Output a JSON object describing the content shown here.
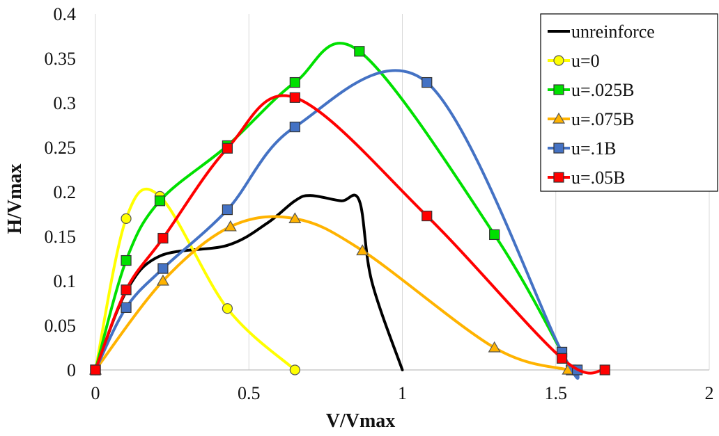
{
  "chart_data": {
    "type": "scatter",
    "title": "",
    "xlabel": "V/Vmax",
    "ylabel": "H/Vmax",
    "xlim": [
      0,
      2
    ],
    "ylim": [
      0,
      0.4
    ],
    "x_ticks": [
      0,
      0.5,
      1,
      1.5,
      2
    ],
    "x_tick_labels": [
      "0",
      "0.5",
      "1",
      "1.5",
      "2"
    ],
    "y_ticks": [
      0,
      0.05,
      0.1,
      0.15,
      0.2,
      0.25,
      0.3,
      0.35,
      0.4
    ],
    "y_tick_labels": [
      "0",
      "0.05",
      "0.1",
      "0.15",
      "0.2",
      "0.25",
      "0.3",
      "0.35",
      "0.4"
    ],
    "grid": "vertical",
    "legend_position": "top-right",
    "series": [
      {
        "name": "unreinforce",
        "color": "#000000",
        "marker": "none",
        "x": [
          0,
          0.1,
          0.21,
          0.43,
          0.56,
          0.65,
          0.7,
          0.8,
          0.86,
          0.9,
          1.0
        ],
        "y": [
          0,
          0.088,
          0.128,
          0.14,
          0.165,
          0.19,
          0.196,
          0.19,
          0.19,
          0.1,
          0
        ]
      },
      {
        "name": "u=0",
        "color": "#ffff00",
        "marker": "circle",
        "x": [
          0,
          0.1,
          0.21,
          0.43,
          0.65
        ],
        "y": [
          0,
          0.17,
          0.195,
          0.069,
          0
        ]
      },
      {
        "name": "u=.025B",
        "color": "#00e000",
        "marker": "square",
        "x": [
          0,
          0.1,
          0.21,
          0.43,
          0.65,
          0.86,
          1.3,
          1.55
        ],
        "y": [
          0,
          0.123,
          0.19,
          0.252,
          0.323,
          0.358,
          0.152,
          0
        ]
      },
      {
        "name": "u=.075B",
        "color": "#ffb300",
        "marker": "triangle",
        "x": [
          0,
          0.22,
          0.44,
          0.65,
          0.87,
          1.3,
          1.54
        ],
        "y": [
          0,
          0.1,
          0.161,
          0.17,
          0.134,
          0.025,
          0
        ]
      },
      {
        "name": "u=.1B",
        "color": "#4472c4",
        "marker": "square",
        "x": [
          0,
          0.1,
          0.22,
          0.43,
          0.65,
          1.08,
          1.52,
          1.57
        ],
        "y": [
          0,
          0.07,
          0.114,
          0.18,
          0.273,
          0.323,
          0.02,
          0
        ]
      },
      {
        "name": "u=.05B",
        "color": "#ff0000",
        "marker": "square",
        "x": [
          0,
          0.1,
          0.22,
          0.43,
          0.65,
          1.08,
          1.52,
          1.66
        ],
        "y": [
          0,
          0.09,
          0.148,
          0.249,
          0.306,
          0.173,
          0.013,
          0
        ]
      }
    ]
  }
}
